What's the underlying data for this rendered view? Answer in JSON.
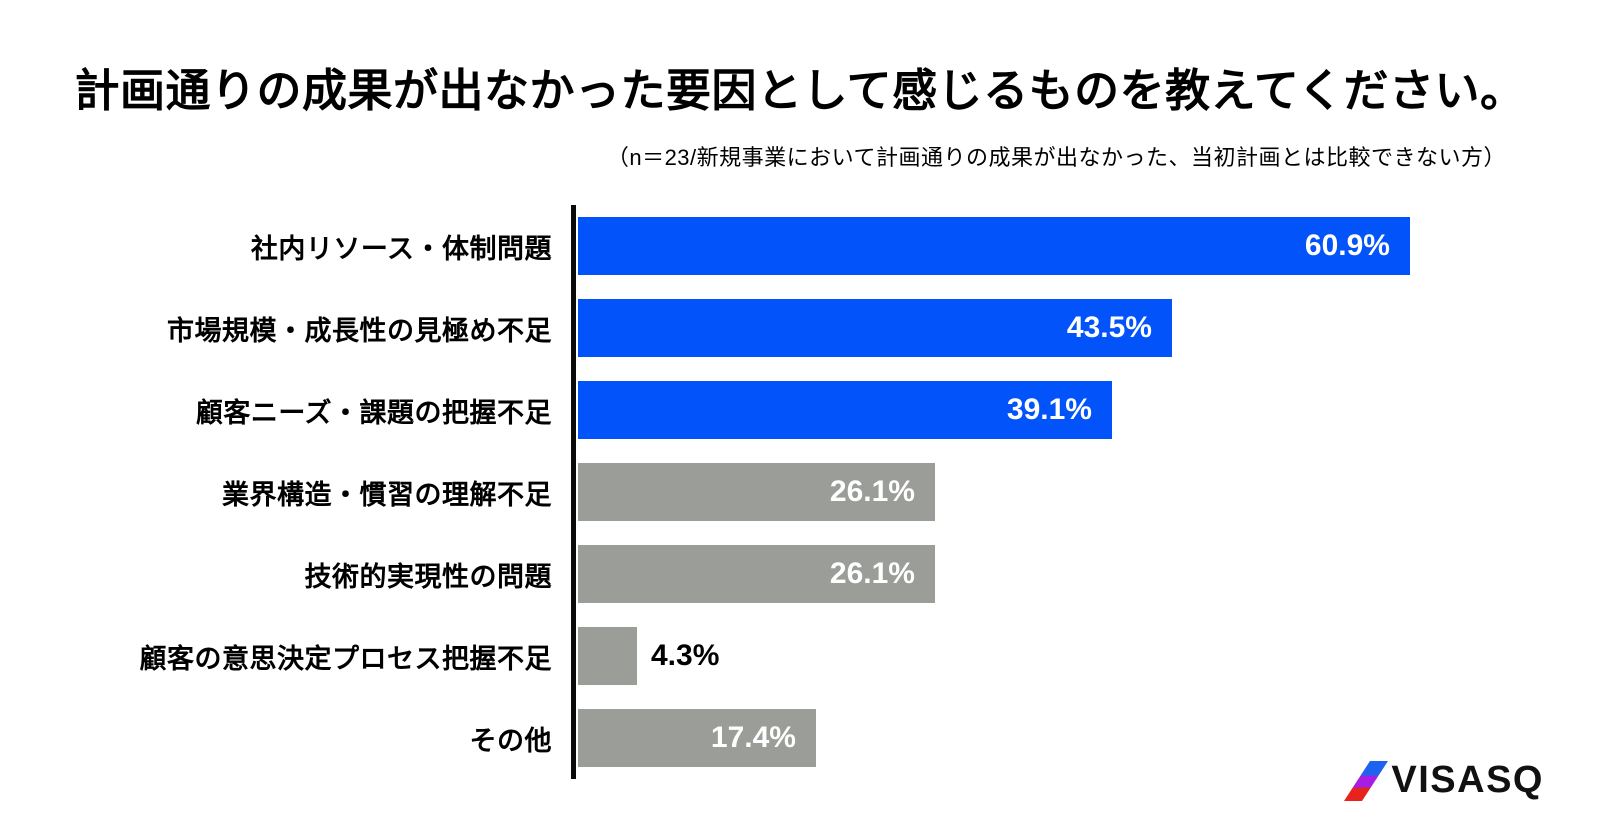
{
  "title": "計画通りの成果が出なかった要因として感じるものを教えてください。",
  "subtitle": "（n＝23/新規事業において計画通りの成果が出なかった、当初計画とは比較できない方）",
  "colors": {
    "highlight": "#0353fb",
    "muted": "#9b9d99",
    "axis": "#0a0a0a",
    "value_inside": "#ffffff",
    "value_outside": "#000000"
  },
  "chart_data": {
    "type": "bar",
    "orientation": "horizontal",
    "title": "計画通りの成果が出なかった要因として感じるものを教えてください。",
    "subtitle": "（n＝23/新規事業において計画通りの成果が出なかった、当初計画とは比較できない方）",
    "sample_size": 23,
    "unit": "%",
    "xlim": [
      0,
      100
    ],
    "grid": false,
    "legend": false,
    "categories": [
      "社内リソース・体制問題",
      "市場規模・成長性の見極め不足",
      "顧客ニーズ・課題の把握不足",
      "業界構造・慣習の理解不足",
      "技術的実現性の問題",
      "顧客の意思決定プロセス把握不足",
      "その他"
    ],
    "values": [
      60.9,
      43.5,
      39.1,
      26.1,
      26.1,
      4.3,
      17.4
    ],
    "value_labels": [
      "60.9%",
      "43.5%",
      "39.1%",
      "26.1%",
      "26.1%",
      "4.3%",
      "17.4%"
    ],
    "bar_styles": [
      "highlight",
      "highlight",
      "highlight",
      "muted",
      "muted",
      "muted",
      "muted"
    ]
  },
  "logo": {
    "text": "VISASQ",
    "slash_colors": [
      "#1e63f0",
      "#a61ee4",
      "#e6231c"
    ]
  }
}
